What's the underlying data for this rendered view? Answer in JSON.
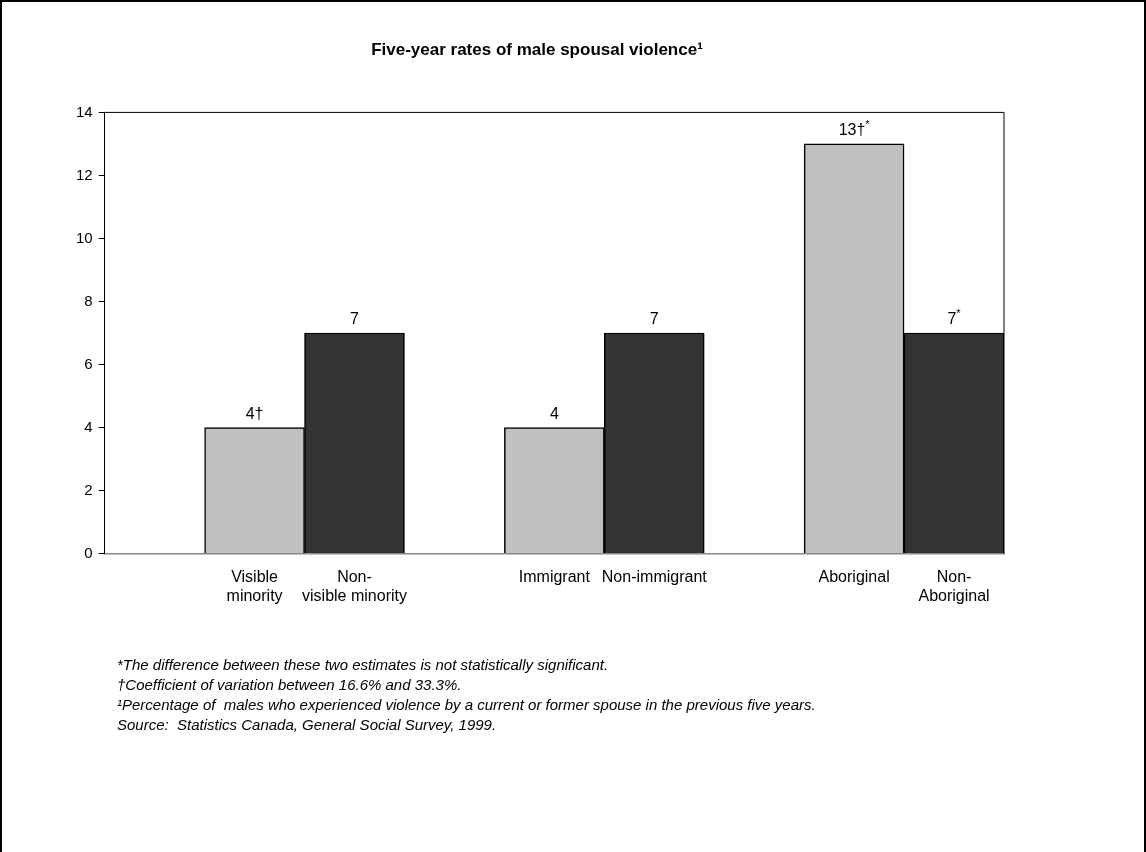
{
  "chart_data": {
    "type": "bar",
    "title": "Five-year rates of male spousal violence¹",
    "categories": [
      null,
      "Visible\nminority",
      "Non-\nvisible minority",
      null,
      "Immigrant",
      "Non-immigrant",
      null,
      "Aboriginal",
      "Non-\nAboriginal"
    ],
    "values": [
      null,
      4,
      7,
      null,
      4,
      7,
      null,
      13,
      7
    ],
    "colors": [
      "#c0c0c0",
      "#c0c0c0",
      "#333333",
      "#c0c0c0",
      "#c0c0c0",
      "#333333",
      "#c0c0c0",
      "#c0c0c0",
      "#333333"
    ],
    "value_labels": [
      null,
      "4†",
      "7",
      null,
      "4",
      "7",
      null,
      "13†$^{*}$",
      "7$^{*}$"
    ],
    "ylim": [
      0,
      14
    ],
    "yticks": [
      0,
      2,
      4,
      6,
      8,
      10,
      12,
      14
    ],
    "grid": false,
    "legend": false,
    "annotations": [
      "*The difference between these two estimates is not statistically significant.",
      "†Coefficient of variation between 16.6% and 33.3%.",
      "¹Percentage of  males who experienced violence by a current or former spouse in the previous five years.",
      "Source:  Statistics Canada, General Social Survey, 1999."
    ]
  }
}
